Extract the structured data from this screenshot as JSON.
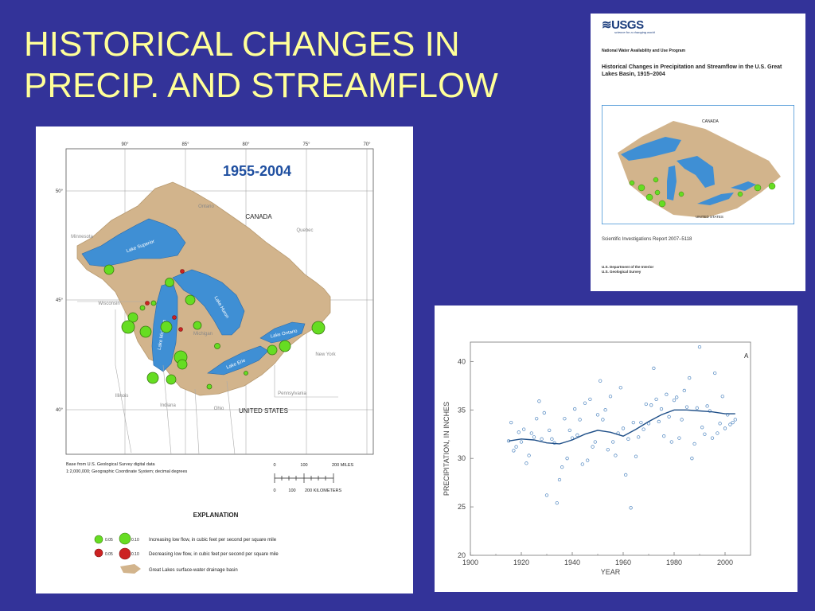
{
  "slide": {
    "title_line1": "HISTORICAL CHANGES IN",
    "title_line2": "PRECIP. AND STREAMFLOW"
  },
  "colors": {
    "background": "#333399",
    "title": "#ffff99",
    "basin": "#d2b48c",
    "lake": "#3f8fd4",
    "increase": "#66dd22",
    "decrease": "#cc2222",
    "curve": "#1f4f88"
  },
  "map": {
    "period_label": "1955-2004",
    "top_longitudes": [
      "90°",
      "85°",
      "80°",
      "75°",
      "70°"
    ],
    "left_latitudes": [
      "50°",
      "45°",
      "40°"
    ],
    "country_labels": [
      "CANADA",
      "UNITED STATES"
    ],
    "province_labels": [
      "Ontario",
      "Quebec"
    ],
    "state_labels": [
      "Minnesota",
      "Wisconsin",
      "Michigan",
      "Illinois",
      "Indiana",
      "Ohio",
      "Pennsylvania",
      "New York"
    ],
    "lake_labels": [
      "Lake Superior",
      "Lake Michigan",
      "Lake Huron",
      "Lake Erie",
      "Lake Ontario"
    ],
    "source_note_1": "Base from U.S. Geological Survey digital data",
    "source_note_2": "1:2,000,000; Geographic Coordinate System; decimal degrees",
    "scale_miles": [
      "0",
      "100",
      "200 MILES"
    ],
    "scale_km": [
      "0",
      "100",
      "200 KILOMETERS"
    ],
    "explanation_title": "EXPLANATION",
    "legend": [
      {
        "values": [
          "0.05",
          "0.10"
        ],
        "text": "Increasing low flow, in cubic feet per second per square mile"
      },
      {
        "values": [
          "0.05",
          "0.10"
        ],
        "text": "Decreasing low flow, in cubic feet per second per square mile"
      },
      {
        "values": [],
        "text": "Great Lakes surface-water drainage basin"
      }
    ]
  },
  "cover": {
    "logo": "≋USGS",
    "tagline": "science for a changing world",
    "program": "National Water Availability and Use Program",
    "title": "Historical Changes in Precipitation and Streamflow in the U.S. Great Lakes Basin, 1915–2004",
    "map_labels": [
      "CANADA",
      "UNITED STATES"
    ],
    "report": "Scientific Investigations Report 2007–5118",
    "dept_1": "U.S. Department of the Interior",
    "dept_2": "U.S. Geological Survey"
  },
  "chart_data": {
    "type": "scatter",
    "panel_label": "A",
    "xlabel": "YEAR",
    "ylabel": "PRECIPITATION, IN INCHES",
    "xlim": [
      1900,
      2010
    ],
    "ylim": [
      20,
      42
    ],
    "xticks": [
      1900,
      1920,
      1940,
      1960,
      1980,
      2000
    ],
    "yticks": [
      20,
      25,
      30,
      35,
      40
    ],
    "grid": false,
    "series": [
      {
        "marker": "open-circle",
        "x": [
          1915,
          1916,
          1917,
          1918,
          1919,
          1920,
          1921,
          1922,
          1923,
          1924,
          1925,
          1926,
          1927,
          1928,
          1929,
          1930,
          1931,
          1932,
          1933,
          1934,
          1935,
          1936,
          1937,
          1938,
          1939,
          1940,
          1941,
          1942,
          1943,
          1944,
          1945,
          1946,
          1947,
          1948,
          1949,
          1950,
          1951,
          1952,
          1953,
          1954,
          1955,
          1956,
          1957,
          1958,
          1959,
          1960,
          1961,
          1962,
          1963,
          1964,
          1965,
          1966,
          1967,
          1968,
          1969,
          1970,
          1971,
          1972,
          1973,
          1974,
          1975,
          1976,
          1977,
          1978,
          1979,
          1980,
          1981,
          1982,
          1983,
          1984,
          1985,
          1986,
          1987,
          1988,
          1989,
          1990,
          1991,
          1992,
          1993,
          1994,
          1995,
          1996,
          1997,
          1998,
          1999,
          2000,
          2001,
          2002,
          2003,
          2004
        ],
        "y": [
          31.8,
          33.7,
          30.8,
          31.2,
          32.7,
          31.7,
          33.0,
          29.5,
          30.3,
          32.6,
          32.2,
          34.1,
          35.9,
          32.0,
          34.7,
          26.2,
          32.9,
          32.0,
          31.6,
          25.4,
          27.8,
          29.1,
          34.1,
          30.0,
          32.9,
          32.1,
          35.1,
          32.4,
          34.0,
          29.4,
          35.7,
          29.8,
          36.1,
          31.2,
          31.7,
          34.5,
          38.0,
          34.0,
          35.0,
          30.9,
          36.4,
          31.7,
          30.3,
          32.6,
          37.3,
          33.1,
          28.3,
          32.0,
          24.9,
          33.7,
          30.2,
          32.2,
          33.7,
          33.0,
          35.6,
          33.6,
          35.5,
          39.3,
          36.1,
          33.8,
          35.1,
          32.3,
          36.6,
          34.3,
          31.7,
          36.0,
          36.3,
          32.1,
          34.0,
          37.0,
          35.3,
          38.3,
          30.0,
          31.5,
          35.2,
          41.5,
          33.2,
          32.5,
          35.4,
          34.9,
          32.1,
          38.8,
          32.6,
          33.6,
          36.4,
          33.1,
          34.5,
          33.5,
          33.7,
          34.0
        ]
      },
      {
        "name": "",
        "type": "line",
        "x": [
          1915,
          1920,
          1925,
          1930,
          1935,
          1940,
          1945,
          1950,
          1955,
          1960,
          1965,
          1970,
          1975,
          1980,
          1985,
          1990,
          1995,
          2000,
          2004
        ],
        "y": [
          31.8,
          32.0,
          31.9,
          31.6,
          31.5,
          31.9,
          32.5,
          32.9,
          32.7,
          32.3,
          33.0,
          33.8,
          34.5,
          35.0,
          35.0,
          34.9,
          34.8,
          34.6,
          34.6
        ]
      }
    ]
  }
}
